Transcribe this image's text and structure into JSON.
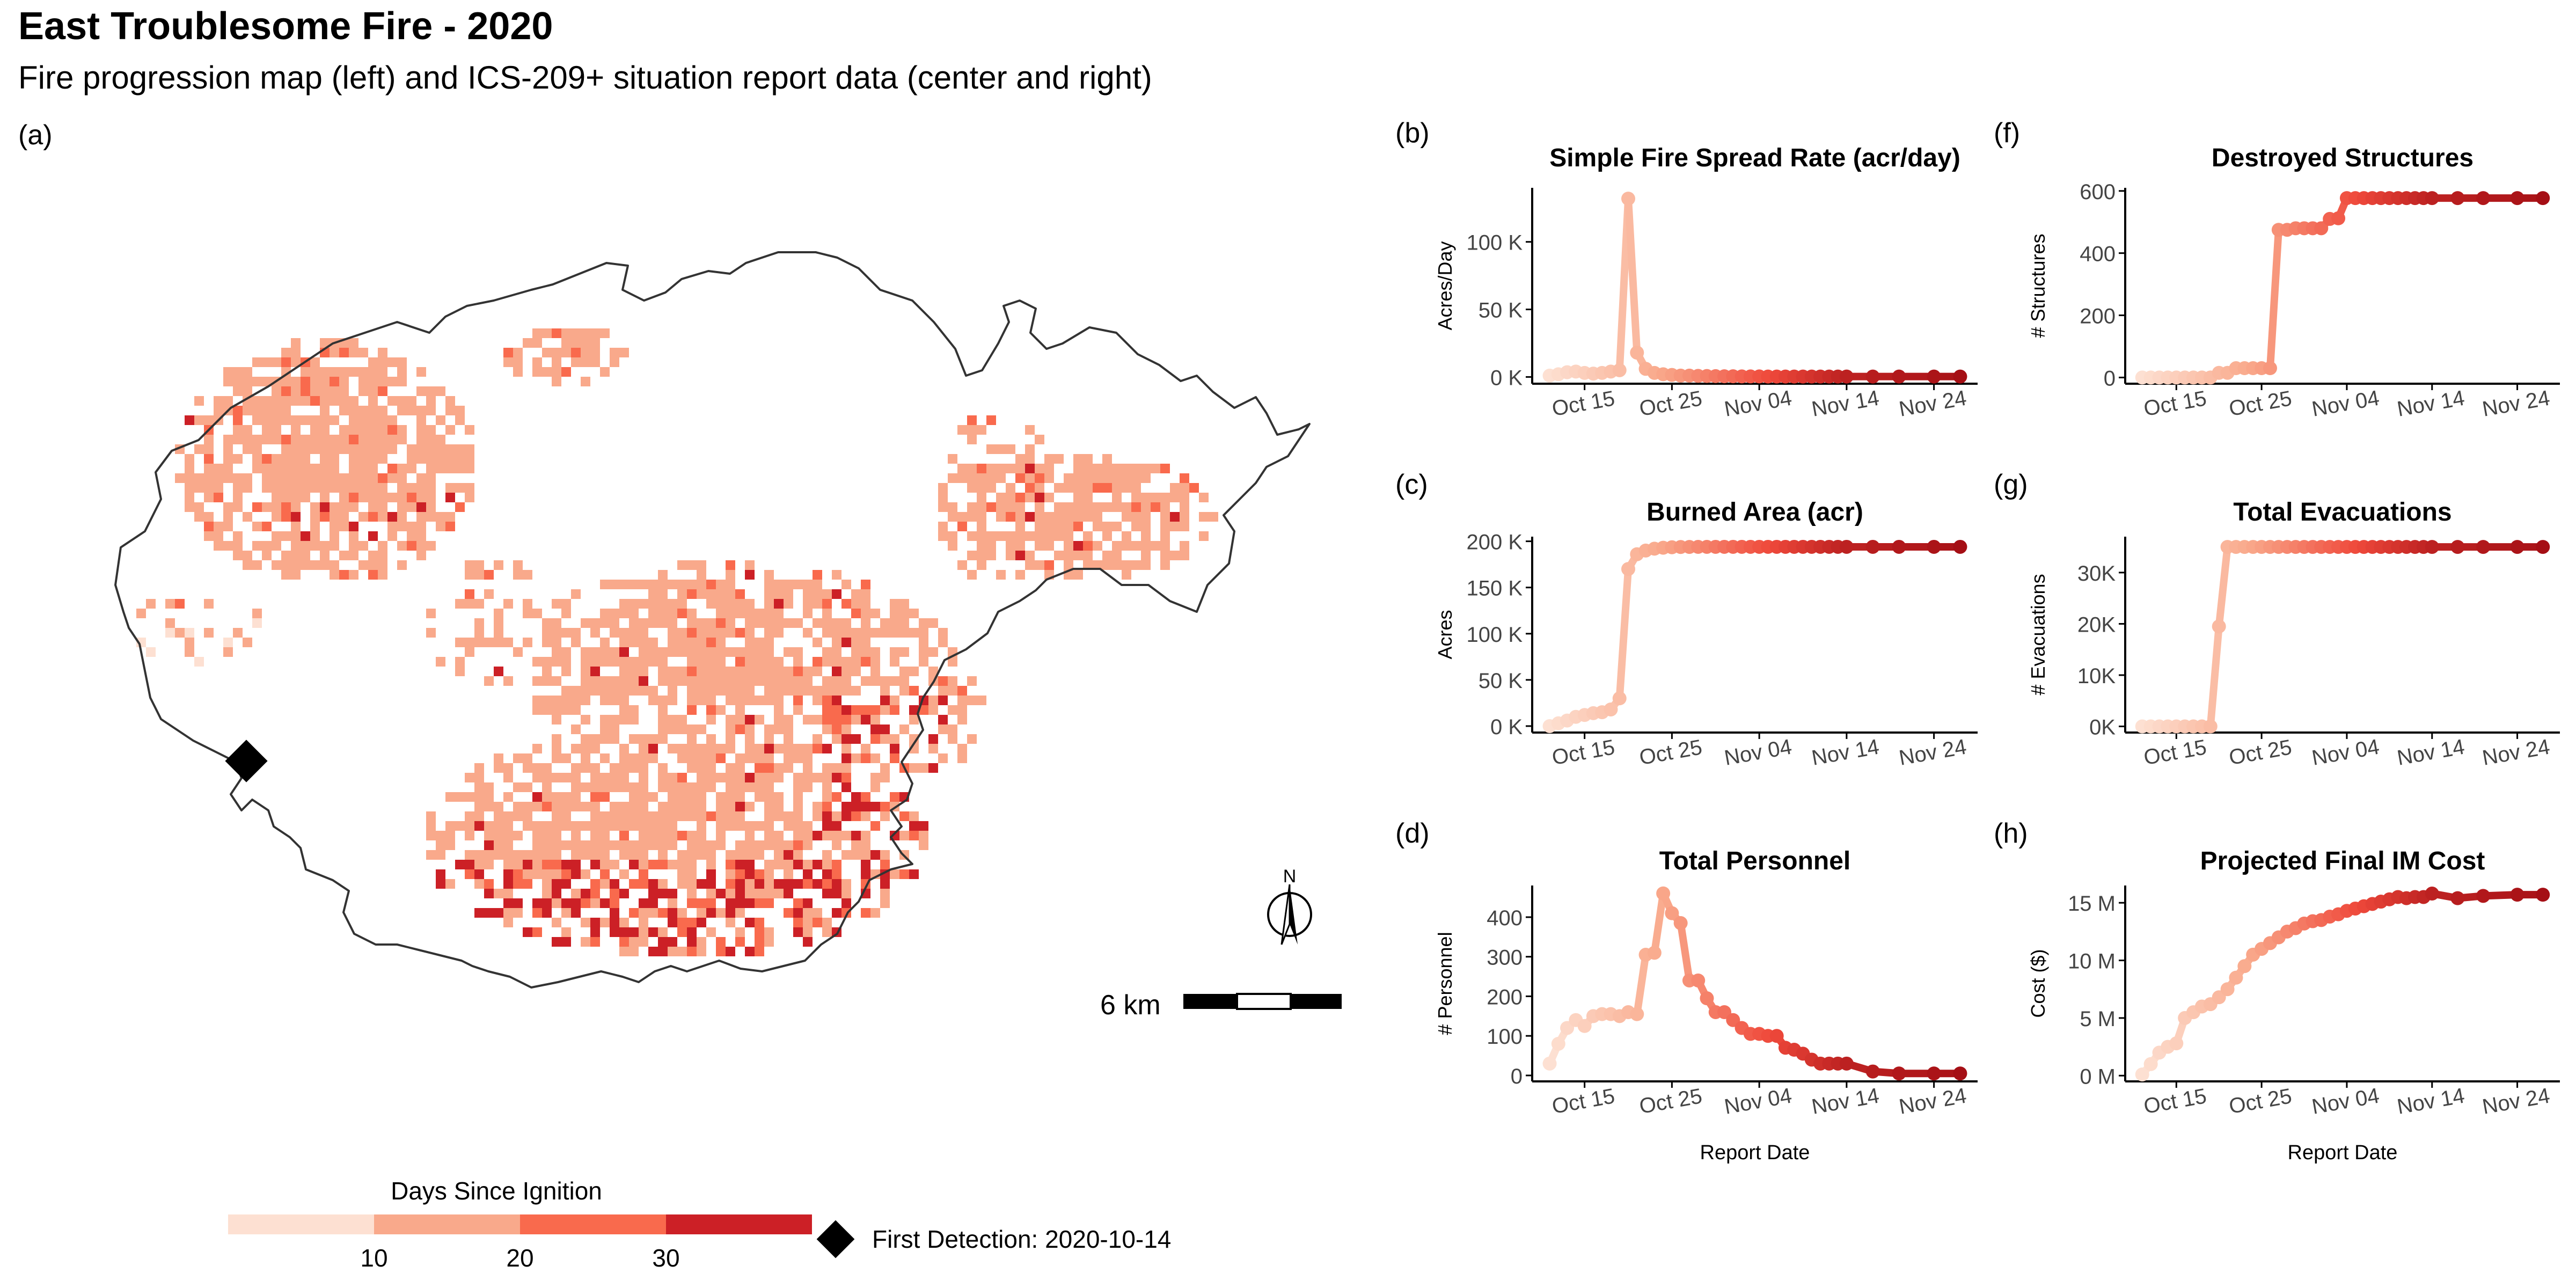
{
  "header": {
    "title": "East Troublesome Fire - 2020",
    "subtitle": "Fire progression map (left) and ICS-209+ situation report data (center and right)"
  },
  "map": {
    "tag": "(a)",
    "scale_label": "6 km",
    "north_label": "N",
    "legend_title": "Days Since Ignition",
    "legend_ticks": [
      "10",
      "20",
      "30"
    ],
    "legend_colors": [
      "#fde0d2",
      "#f9a98b",
      "#f96a4d",
      "#cc2026"
    ],
    "detection_label": "First Detection: 2020-10-14",
    "outline_color": "#333333"
  },
  "chart_data": [
    {
      "id": "b",
      "tag": "(b)",
      "type": "line",
      "title": "Simple Fire Spread Rate (acr/day)",
      "xlabel": "",
      "ylabel": "Acres/Day",
      "x_ticks": [
        "Oct 15",
        "Oct 25",
        "Nov 04",
        "Nov 14",
        "Nov 24"
      ],
      "y_ticks": [
        "0 K",
        "50 K",
        "100 K"
      ],
      "y_tick_values": [
        0,
        50000,
        100000
      ],
      "ylim": [
        -5000,
        140000
      ],
      "x": [
        11,
        12,
        13,
        14,
        15,
        16,
        17,
        18,
        19,
        20,
        21,
        22,
        23,
        24,
        25,
        26,
        27,
        28,
        29,
        30,
        31,
        32,
        33,
        34,
        35,
        36,
        37,
        38,
        39,
        40,
        41,
        42,
        43,
        44,
        45,
        48,
        51,
        55,
        58
      ],
      "values": [
        1000,
        2000,
        3500,
        4000,
        3000,
        2500,
        3000,
        4000,
        5000,
        132000,
        18000,
        6000,
        3000,
        2000,
        1500,
        1000,
        1000,
        800,
        700,
        600,
        500,
        500,
        400,
        400,
        400,
        300,
        300,
        300,
        300,
        300,
        300,
        300,
        300,
        300,
        300,
        300,
        300,
        300,
        300
      ]
    },
    {
      "id": "c",
      "tag": "(c)",
      "type": "line",
      "title": "Burned Area (acr)",
      "xlabel": "",
      "ylabel": "Acres",
      "x_ticks": [
        "Oct 15",
        "Oct 25",
        "Nov 04",
        "Nov 14",
        "Nov 24"
      ],
      "y_ticks": [
        "0 K",
        "50 K",
        "100 K",
        "150 K",
        "200 K"
      ],
      "y_tick_values": [
        0,
        50000,
        100000,
        150000,
        200000
      ],
      "ylim": [
        -7000,
        205000
      ],
      "x": [
        11,
        12,
        13,
        14,
        15,
        16,
        17,
        18,
        19,
        20,
        21,
        22,
        23,
        24,
        25,
        26,
        27,
        28,
        29,
        30,
        31,
        32,
        33,
        34,
        35,
        36,
        37,
        38,
        39,
        40,
        41,
        42,
        43,
        44,
        45,
        48,
        51,
        55,
        58
      ],
      "values": [
        0,
        3000,
        6000,
        10000,
        12000,
        14000,
        15000,
        18000,
        30000,
        170000,
        186000,
        190000,
        192000,
        193000,
        193500,
        193800,
        193900,
        193950,
        193980,
        194000,
        194000,
        194000,
        194000,
        194000,
        194000,
        194000,
        194000,
        194000,
        194000,
        194000,
        194000,
        194000,
        194000,
        194000,
        194000,
        194000,
        194000,
        194000,
        194000
      ]
    },
    {
      "id": "d",
      "tag": "(d)",
      "type": "line",
      "title": "Total Personnel",
      "xlabel": "Report Date",
      "ylabel": "# Personnel",
      "x_ticks": [
        "Oct 15",
        "Oct 25",
        "Nov 04",
        "Nov 14",
        "Nov 24"
      ],
      "y_ticks": [
        "0",
        "100",
        "200",
        "300",
        "400"
      ],
      "y_tick_values": [
        0,
        100,
        200,
        300,
        400
      ],
      "ylim": [
        -15,
        480
      ],
      "x": [
        11,
        12,
        13,
        14,
        15,
        16,
        17,
        18,
        19,
        20,
        21,
        22,
        23,
        24,
        25,
        26,
        27,
        28,
        29,
        30,
        31,
        32,
        33,
        34,
        35,
        36,
        37,
        38,
        39,
        40,
        41,
        42,
        43,
        44,
        45,
        48,
        51,
        55,
        58
      ],
      "values": [
        30,
        80,
        120,
        140,
        125,
        150,
        155,
        155,
        150,
        160,
        155,
        305,
        310,
        460,
        410,
        385,
        240,
        240,
        195,
        160,
        160,
        140,
        120,
        105,
        105,
        100,
        100,
        70,
        65,
        55,
        40,
        30,
        30,
        30,
        30,
        10,
        5,
        5,
        5
      ]
    },
    {
      "id": "f",
      "tag": "(f)",
      "type": "line",
      "title": "Destroyed Structures",
      "xlabel": "",
      "ylabel": "# Structures",
      "x_ticks": [
        "Oct 15",
        "Oct 25",
        "Nov 04",
        "Nov 14",
        "Nov 24"
      ],
      "y_ticks": [
        "0",
        "200",
        "400",
        "600"
      ],
      "y_tick_values": [
        0,
        200,
        400,
        600
      ],
      "ylim": [
        -20,
        610
      ],
      "x": [
        11,
        12,
        13,
        14,
        15,
        16,
        17,
        18,
        19,
        20,
        21,
        22,
        23,
        24,
        25,
        26,
        27,
        28,
        29,
        30,
        31,
        32,
        33,
        34,
        35,
        36,
        37,
        38,
        39,
        40,
        41,
        42,
        43,
        44,
        45,
        48,
        51,
        55,
        58
      ],
      "values": [
        0,
        0,
        0,
        0,
        0,
        0,
        0,
        0,
        0,
        15,
        15,
        30,
        30,
        30,
        30,
        30,
        475,
        475,
        480,
        480,
        480,
        480,
        510,
        512,
        577,
        577,
        577,
        577,
        577,
        577,
        577,
        577,
        577,
        577,
        577,
        577,
        577,
        577,
        577
      ]
    },
    {
      "id": "g",
      "tag": "(g)",
      "type": "line",
      "title": "Total Evacuations",
      "xlabel": "",
      "ylabel": "# Evacuations",
      "x_ticks": [
        "Oct 15",
        "Oct 25",
        "Nov 04",
        "Nov 14",
        "Nov 24"
      ],
      "y_ticks": [
        "0K",
        "10K",
        "20K",
        "30K"
      ],
      "y_tick_values": [
        0,
        10000,
        20000,
        30000
      ],
      "ylim": [
        -1200,
        37000
      ],
      "x": [
        11,
        12,
        13,
        14,
        15,
        16,
        17,
        18,
        19,
        20,
        21,
        22,
        23,
        24,
        25,
        26,
        27,
        28,
        29,
        30,
        31,
        32,
        33,
        34,
        35,
        36,
        37,
        38,
        39,
        40,
        41,
        42,
        43,
        44,
        45,
        48,
        51,
        55,
        58
      ],
      "values": [
        0,
        0,
        0,
        0,
        0,
        0,
        0,
        0,
        0,
        19500,
        35000,
        35000,
        35000,
        35000,
        35000,
        35000,
        35000,
        35000,
        35000,
        35000,
        35000,
        35000,
        35000,
        35000,
        35000,
        35000,
        35000,
        35000,
        35000,
        35000,
        35000,
        35000,
        35000,
        35000,
        35000,
        35000,
        35000,
        35000,
        35000
      ]
    },
    {
      "id": "h",
      "tag": "(h)",
      "type": "line",
      "title": "Projected Final IM Cost",
      "xlabel": "Report Date",
      "ylabel": "Cost ($)",
      "x_ticks": [
        "Oct 15",
        "Oct 25",
        "Nov 04",
        "Nov 14",
        "Nov 24"
      ],
      "y_ticks": [
        "0 M",
        "5 M",
        "10 M",
        "15 M"
      ],
      "y_tick_values": [
        0,
        5000000,
        10000000,
        15000000
      ],
      "ylim": [
        -500000,
        16500000
      ],
      "x": [
        11,
        12,
        13,
        14,
        15,
        16,
        17,
        18,
        19,
        20,
        21,
        22,
        23,
        24,
        25,
        26,
        27,
        28,
        29,
        30,
        31,
        32,
        33,
        34,
        35,
        36,
        37,
        38,
        39,
        40,
        41,
        42,
        43,
        44,
        45,
        48,
        51,
        55,
        58
      ],
      "values": [
        100000,
        1000000,
        2000000,
        2500000,
        2800000,
        5000000,
        5500000,
        6000000,
        6200000,
        6800000,
        7500000,
        8500000,
        9500000,
        10500000,
        11000000,
        11500000,
        12000000,
        12500000,
        12800000,
        13200000,
        13400000,
        13500000,
        13800000,
        14000000,
        14300000,
        14500000,
        14700000,
        14900000,
        15100000,
        15300000,
        15500000,
        15400000,
        15500000,
        15500000,
        15800000,
        15400000,
        15600000,
        15700000,
        15700000
      ]
    }
  ]
}
